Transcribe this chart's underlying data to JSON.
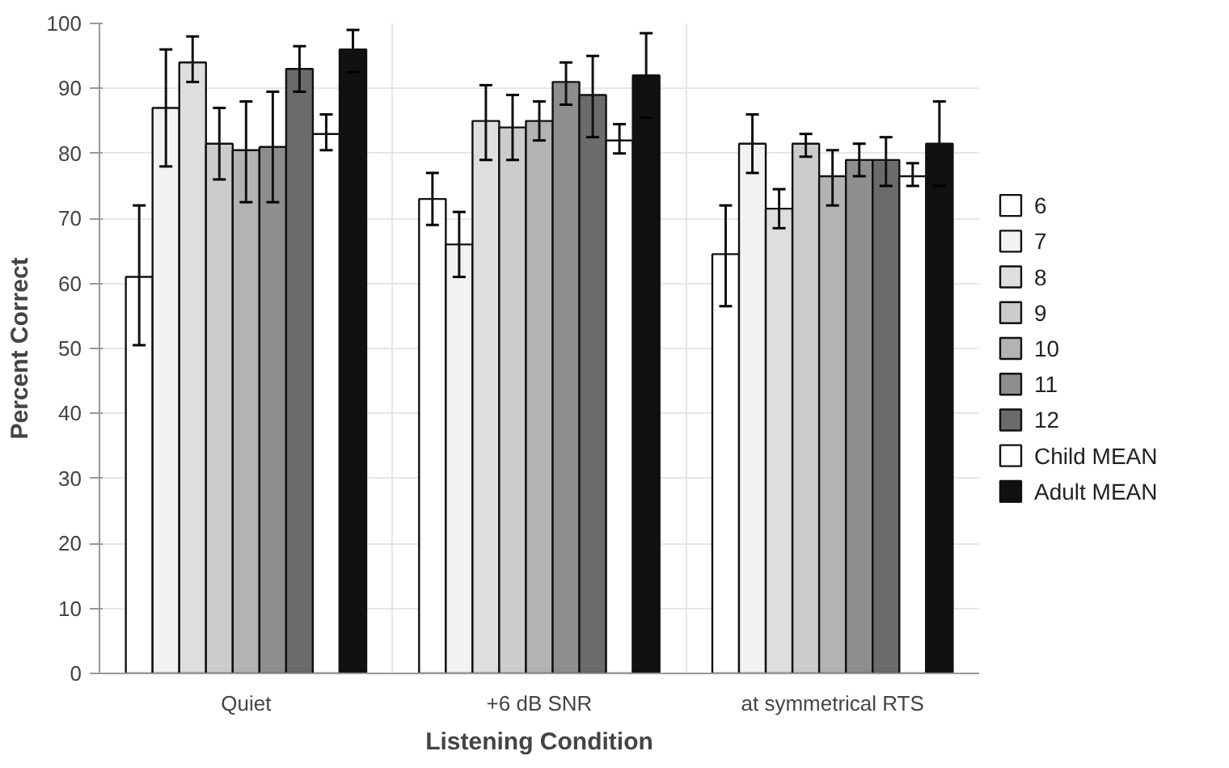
{
  "chart_data": {
    "type": "bar",
    "xlabel": "Listening Condition",
    "ylabel": "Percent Correct",
    "categories": [
      "Quiet",
      "+6 dB SNR",
      "at symmetrical RTS"
    ],
    "ylim": [
      0,
      100
    ],
    "yticks": [
      0,
      10,
      20,
      30,
      40,
      50,
      60,
      70,
      80,
      90,
      100
    ],
    "grid": true,
    "legend": "right",
    "series": [
      {
        "name": "6",
        "color": "#ffffff",
        "values": [
          61,
          73,
          64.5
        ],
        "errors": [
          [
            50.5,
            72
          ],
          [
            69,
            77
          ],
          [
            56.5,
            72
          ]
        ]
      },
      {
        "name": "7",
        "color": "#f2f2f2",
        "values": [
          87,
          66,
          81.5
        ],
        "errors": [
          [
            78,
            96
          ],
          [
            61,
            71
          ],
          [
            77,
            86
          ]
        ]
      },
      {
        "name": "8",
        "color": "#dedede",
        "values": [
          94,
          85,
          71.5
        ],
        "errors": [
          [
            91,
            98
          ],
          [
            79,
            90.5
          ],
          [
            68.5,
            74.5
          ]
        ]
      },
      {
        "name": "9",
        "color": "#cccccc",
        "values": [
          81.5,
          84,
          81.5
        ],
        "errors": [
          [
            76,
            87
          ],
          [
            79,
            89
          ],
          [
            79.5,
            83
          ]
        ]
      },
      {
        "name": "10",
        "color": "#b3b3b3",
        "values": [
          80.5,
          85,
          76.5
        ],
        "errors": [
          [
            72.5,
            88
          ],
          [
            82,
            88
          ],
          [
            72,
            80.5
          ]
        ]
      },
      {
        "name": "11",
        "color": "#8e8e8e",
        "values": [
          81,
          91,
          79
        ],
        "errors": [
          [
            72.5,
            89.5
          ],
          [
            87.5,
            94
          ],
          [
            76.5,
            81.5
          ]
        ]
      },
      {
        "name": "12",
        "color": "#6b6b6b",
        "values": [
          93,
          89,
          79
        ],
        "errors": [
          [
            89.5,
            96.5
          ],
          [
            82.5,
            95
          ],
          [
            75,
            82.5
          ]
        ]
      },
      {
        "name": "Child MEAN",
        "color": "#ffffff",
        "values": [
          83,
          82,
          76.5
        ],
        "errors": [
          [
            80.5,
            86
          ],
          [
            80,
            84.5
          ],
          [
            75,
            78.5
          ]
        ]
      },
      {
        "name": "Adult MEAN",
        "color": "#111111",
        "values": [
          96,
          92,
          81.5
        ],
        "errors": [
          [
            92.5,
            99
          ],
          [
            85.5,
            98.5
          ],
          [
            75,
            88
          ]
        ]
      }
    ]
  }
}
